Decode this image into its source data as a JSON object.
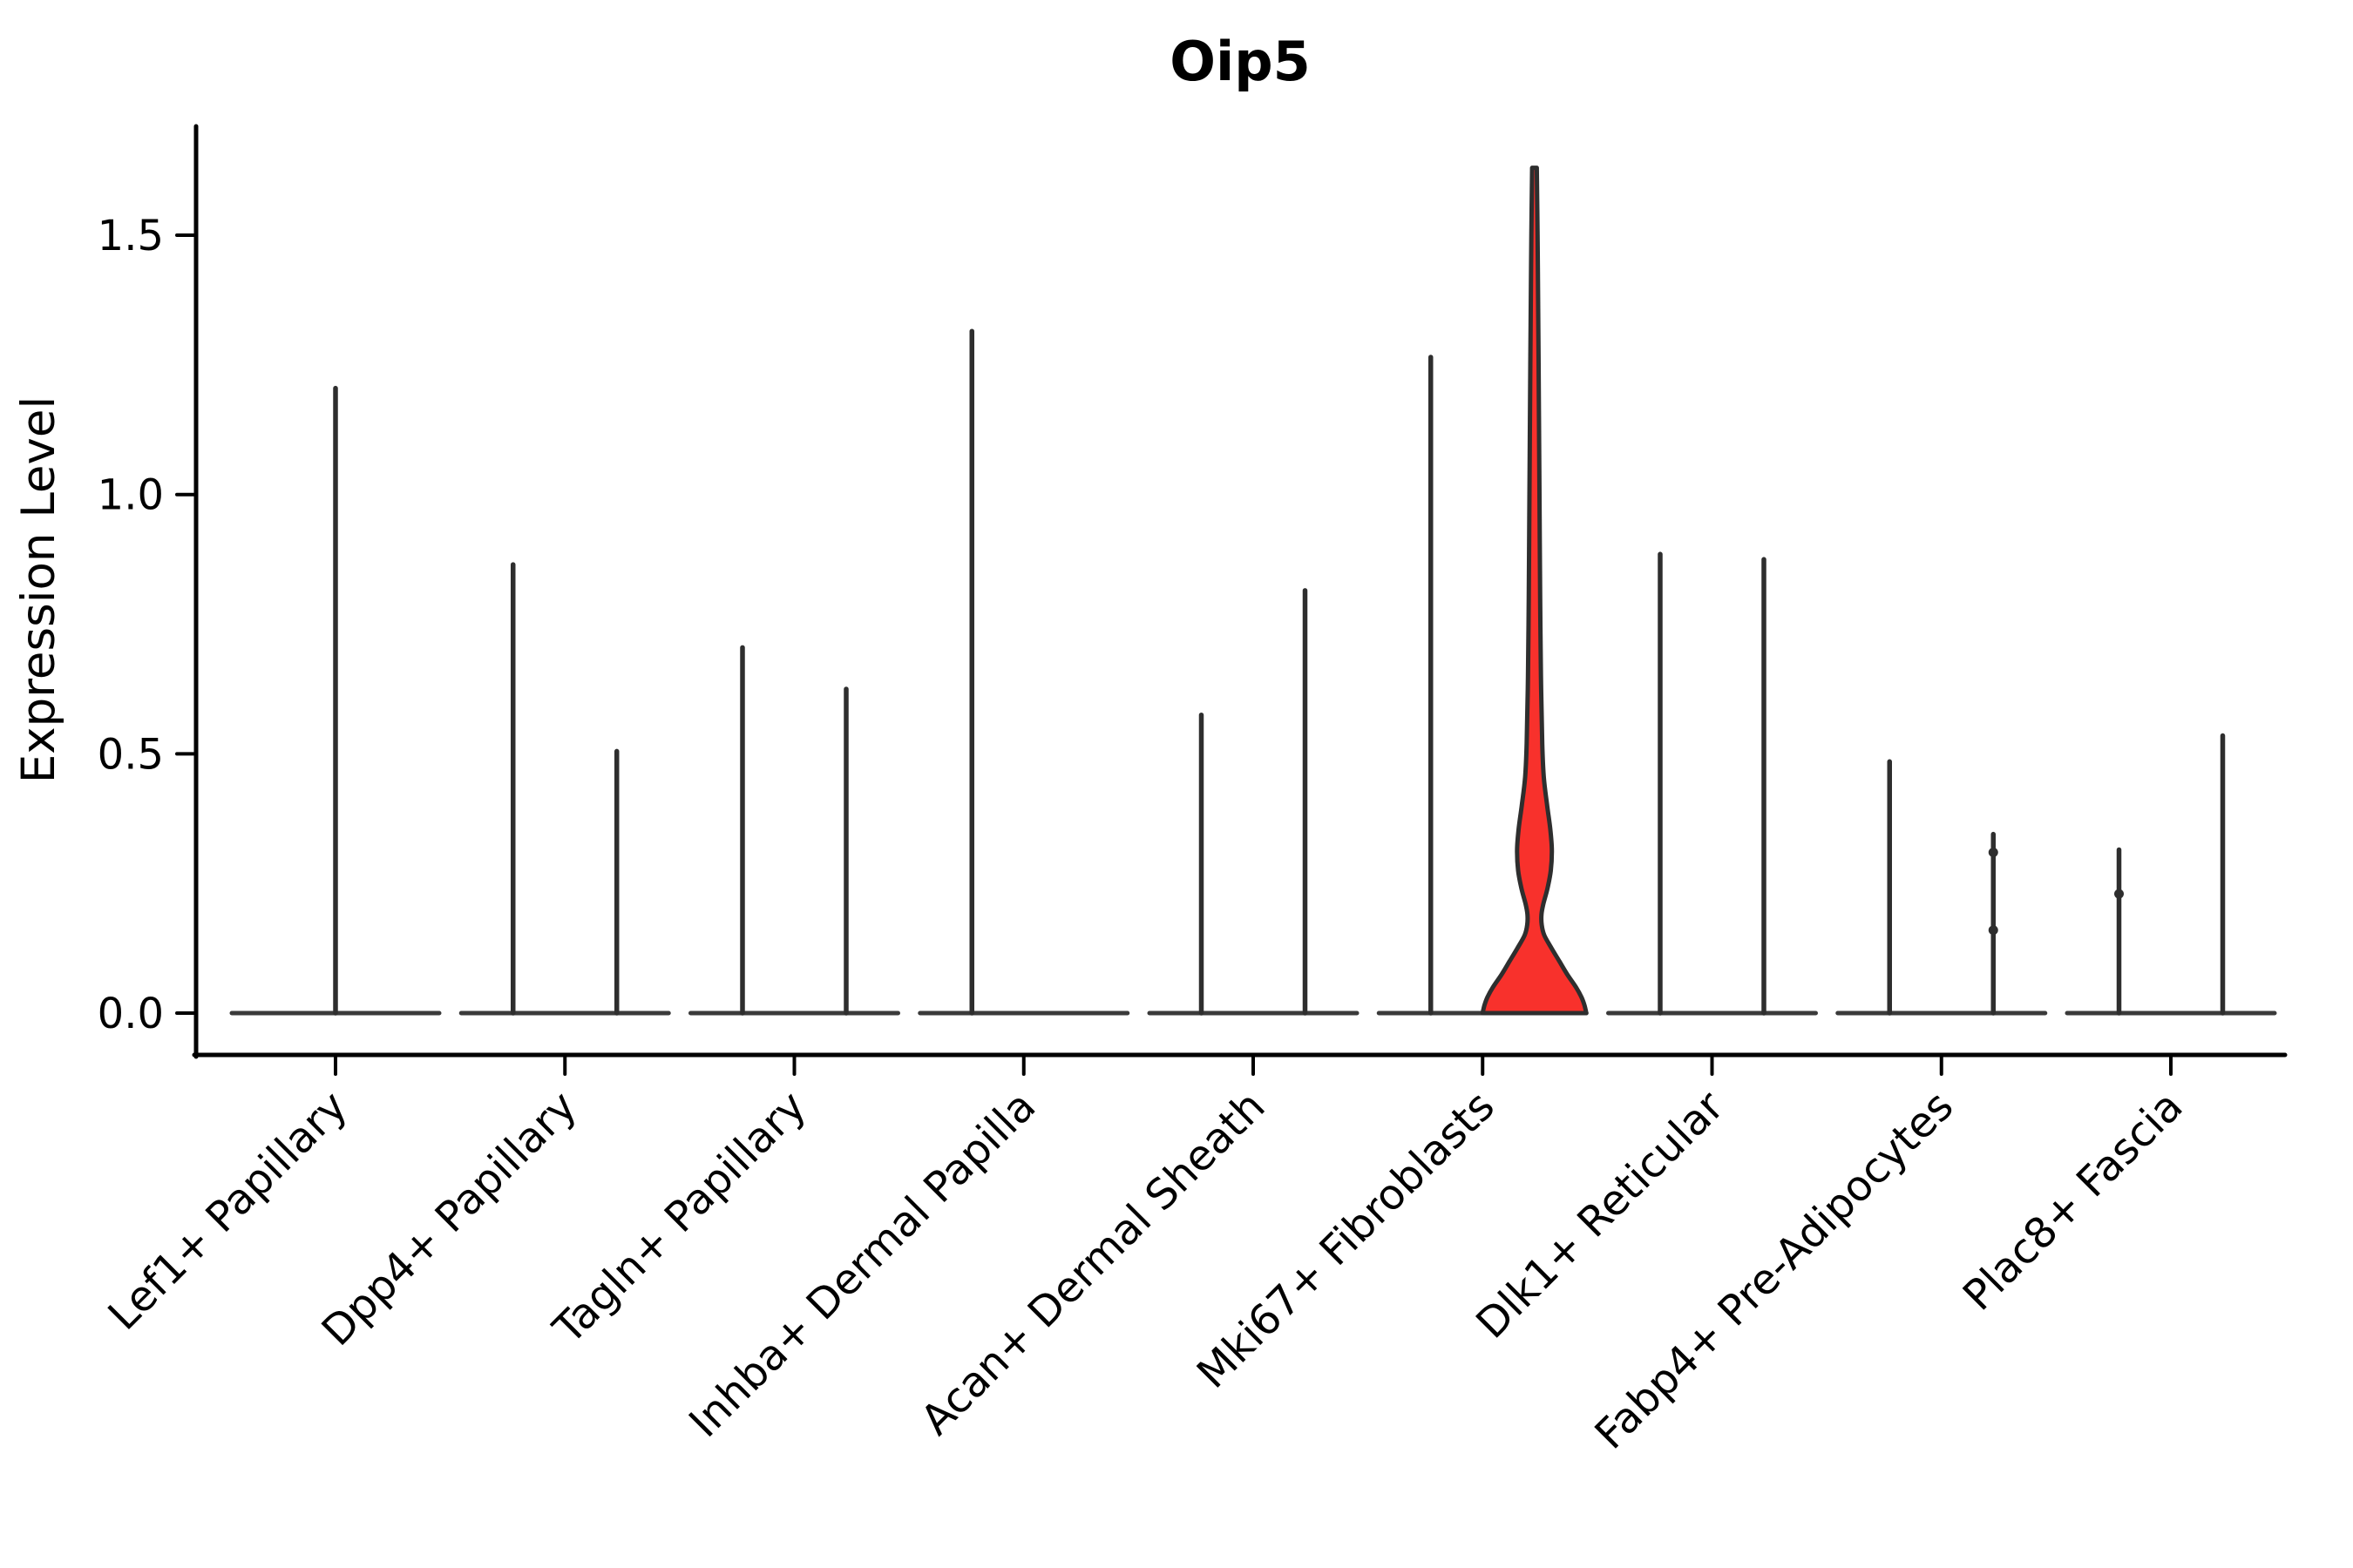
{
  "chart_data": {
    "type": "violin",
    "title": "Oip5",
    "ylabel": "Expression Level",
    "xlabel": "",
    "grid": false,
    "legend": "none",
    "yticks": [
      "0.0",
      "0.5",
      "1.0",
      "1.5"
    ],
    "ytick_values": [
      0.0,
      0.5,
      1.0,
      1.5
    ],
    "ylim": [
      -0.08,
      1.71
    ],
    "colors": {
      "background": "#FFFFFF",
      "spine": "#000000",
      "violin_outline": "#2E2E2E",
      "violin_baseline": "#3A3A3A",
      "highlight_fill": "#F8312C",
      "text": "#000000"
    },
    "categories": [
      {
        "label": "Lef1+ Papillary",
        "violins": [
          {
            "position": "center",
            "max": 1.21
          }
        ]
      },
      {
        "label": "Dpp4+ Papillary",
        "violins": [
          {
            "position": "left",
            "max": 0.87
          },
          {
            "position": "right",
            "max": 0.51
          }
        ]
      },
      {
        "label": "Tagln+ Papillary",
        "violins": [
          {
            "position": "left",
            "max": 0.71
          },
          {
            "position": "right",
            "max": 0.63
          }
        ]
      },
      {
        "label": "Inhba+ Dermal Papilla",
        "violins": [
          {
            "position": "left",
            "max": 1.32
          },
          {
            "position": "right",
            "max": 0
          }
        ]
      },
      {
        "label": "Acan+ Dermal Sheath",
        "violins": [
          {
            "position": "left",
            "max": 0.58
          },
          {
            "position": "right",
            "max": 0.82
          }
        ]
      },
      {
        "label": "Mki67+ Fibroblasts",
        "violins": [
          {
            "position": "left",
            "max": 1.27
          },
          {
            "position": "right",
            "max": 1.63,
            "fill": "#F8312C",
            "profile": [
              [
                1.63,
                0.045
              ],
              [
                1.5,
                0.06
              ],
              [
                1.38,
                0.07
              ],
              [
                1.25,
                0.08
              ],
              [
                1.1,
                0.09
              ],
              [
                0.95,
                0.1
              ],
              [
                0.8,
                0.11
              ],
              [
                0.65,
                0.125
              ],
              [
                0.52,
                0.15
              ],
              [
                0.455,
                0.18
              ],
              [
                0.4,
                0.245
              ],
              [
                0.355,
                0.305
              ],
              [
                0.315,
                0.335
              ],
              [
                0.275,
                0.315
              ],
              [
                0.24,
                0.25
              ],
              [
                0.21,
                0.17
              ],
              [
                0.19,
                0.135
              ],
              [
                0.17,
                0.14
              ],
              [
                0.15,
                0.19
              ],
              [
                0.125,
                0.33
              ],
              [
                0.1,
                0.48
              ],
              [
                0.075,
                0.63
              ],
              [
                0.05,
                0.8
              ],
              [
                0.03,
                0.91
              ],
              [
                0.015,
                0.965
              ],
              [
                0.0,
                1.0
              ]
            ]
          }
        ]
      },
      {
        "label": "Dlk1+ Reticular",
        "violins": [
          {
            "position": "left",
            "max": 0.89
          },
          {
            "position": "right",
            "max": 0.88
          }
        ]
      },
      {
        "label": "Fabp4+ Pre-Adipocytes",
        "violins": [
          {
            "position": "left",
            "max": 0.49
          },
          {
            "position": "right",
            "max": 0.35,
            "knots": [
              0.31,
              0.16
            ]
          }
        ]
      },
      {
        "label": "Plac8+ Fascia",
        "violins": [
          {
            "position": "left",
            "max": 0.32,
            "knots": [
              0.23
            ]
          },
          {
            "position": "right",
            "max": 0.54
          }
        ]
      }
    ]
  }
}
